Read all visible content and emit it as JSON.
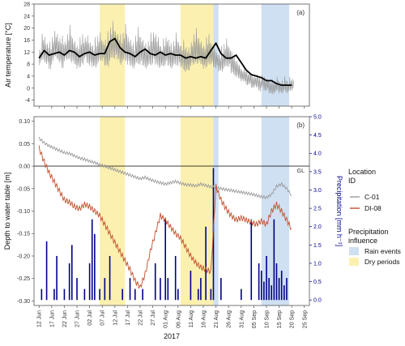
{
  "chart_data": [
    {
      "type": "line",
      "panel_label": "(a)",
      "ylabel": "Air temperature [°C]",
      "ylim": [
        -6,
        28
      ],
      "yticks": [
        -4,
        0,
        4,
        8,
        12,
        16,
        20,
        24,
        28
      ],
      "grid": false,
      "x_note": "days after 12 Jun 2017 (dates share axis with panel b)",
      "series": [
        {
          "role": "hourly temperature (grey)",
          "color": "#999999",
          "x": [
            0,
            1,
            2,
            3,
            4,
            5,
            6,
            7,
            8,
            9,
            10,
            11,
            12,
            13,
            14,
            15,
            16,
            17,
            18,
            19,
            20,
            21,
            22,
            23,
            24,
            25,
            26,
            27,
            28,
            29,
            30,
            31,
            32,
            33,
            34,
            35,
            36,
            37,
            38,
            39,
            40,
            41,
            42,
            43,
            44,
            45,
            46,
            47,
            48,
            49,
            50,
            51,
            52,
            53,
            54,
            55,
            56,
            57,
            58,
            59,
            60,
            61,
            62,
            63,
            64,
            65,
            66,
            67,
            68,
            69,
            70,
            71,
            72,
            73,
            74,
            75,
            76,
            77,
            78,
            79,
            80,
            81,
            82,
            83,
            84,
            85,
            86,
            87,
            88,
            89,
            90,
            91,
            92,
            93,
            94,
            95,
            96,
            97,
            98,
            99,
            100
          ],
          "y_mean": [
            10,
            13,
            12,
            11,
            10,
            12,
            14,
            13,
            12,
            11,
            12,
            13,
            14,
            12,
            11,
            10,
            11,
            12,
            13,
            12,
            11,
            10,
            11,
            12,
            13,
            12,
            11,
            12,
            14,
            15,
            14,
            13,
            12,
            13,
            14,
            12,
            11,
            10,
            12,
            13,
            12,
            11,
            10,
            11,
            12,
            13,
            12,
            11,
            10,
            11,
            12,
            11,
            10,
            11,
            12,
            11,
            10,
            10,
            9,
            9,
            11,
            12,
            13,
            12,
            11,
            10,
            11,
            12,
            11,
            10,
            9,
            8,
            9,
            10,
            11,
            10,
            8,
            7,
            6,
            5,
            4,
            4,
            3,
            3,
            2,
            2,
            2,
            1,
            2,
            1,
            1,
            0,
            0,
            0,
            1,
            0,
            0,
            1,
            0,
            1,
            1
          ],
          "amplitude": [
            4,
            6,
            5,
            5,
            6,
            7,
            6,
            5,
            6,
            7,
            5,
            6,
            7,
            6,
            5,
            6,
            7,
            6,
            5,
            6,
            6,
            5,
            6,
            7,
            6,
            5,
            6,
            7,
            8,
            8,
            7,
            6,
            6,
            7,
            8,
            7,
            6,
            5,
            7,
            8,
            7,
            6,
            5,
            6,
            7,
            8,
            7,
            6,
            5,
            6,
            7,
            6,
            5,
            6,
            7,
            6,
            5,
            6,
            6,
            5,
            6,
            7,
            7,
            6,
            5,
            6,
            7,
            6,
            5,
            5,
            4,
            4,
            5,
            6,
            6,
            5,
            5,
            4,
            4,
            3,
            3,
            3,
            3,
            3,
            3,
            3,
            3,
            3,
            3,
            3,
            3,
            3,
            3,
            3,
            3,
            3,
            3,
            3,
            3,
            3,
            3
          ]
        },
        {
          "role": "daily smoothed temperature (black)",
          "color": "#000000",
          "x": [
            0,
            2,
            4,
            6,
            8,
            10,
            12,
            14,
            16,
            18,
            20,
            22,
            24,
            26,
            28,
            30,
            32,
            34,
            36,
            38,
            40,
            42,
            44,
            46,
            48,
            50,
            52,
            54,
            56,
            58,
            60,
            62,
            64,
            66,
            68,
            70,
            72,
            74,
            76,
            78,
            80,
            82,
            84,
            86,
            88,
            90,
            92,
            94,
            96,
            98,
            100
          ],
          "y": [
            10,
            12.5,
            11,
            11.5,
            12,
            11,
            12.5,
            12,
            10.5,
            11.5,
            12,
            11,
            11.5,
            11.5,
            15.5,
            16.5,
            13.5,
            12,
            11.5,
            10.5,
            12,
            13,
            11.5,
            11,
            12,
            11,
            11.5,
            11,
            11,
            10,
            10.5,
            10,
            10.5,
            10,
            12.5,
            15,
            11.5,
            10,
            10,
            11,
            8.5,
            6,
            4.5,
            4,
            3.5,
            2.5,
            2.5,
            1.5,
            1,
            1,
            1
          ]
        }
      ],
      "shaded_periods": [
        {
          "type": "dry",
          "start": 24,
          "end": 34
        },
        {
          "type": "dry",
          "start": 56,
          "end": 69
        },
        {
          "type": "rain",
          "start": 69,
          "end": 71
        },
        {
          "type": "rain",
          "start": 88,
          "end": 99
        }
      ]
    },
    {
      "type": "line+bar",
      "panel_label": "(b)",
      "ylabel": "Depth to water table [m]",
      "ylabel_right": "Precipitation [mm h⁻¹]",
      "xlabel": "2017",
      "ylim": [
        -0.31,
        0.11
      ],
      "yticks": [
        0.1,
        0.05,
        0.0,
        -0.05,
        -0.1,
        -0.15,
        -0.2,
        -0.25,
        -0.3
      ],
      "ytick_labels": [
        "0.10",
        "0.05",
        "0.00",
        "-0.05",
        "-0.10",
        "-0.15",
        "-0.20",
        "-0.25",
        "-0.30"
      ],
      "y2lim": [
        -0.15,
        5.0
      ],
      "y2ticks": [
        0.0,
        0.5,
        1.0,
        1.5,
        2.0,
        2.5,
        3.0,
        3.5,
        4.0,
        4.5,
        5.0
      ],
      "y2tick_labels": [
        "0.0",
        "0.5",
        "1.0",
        "1.5",
        "2.0",
        "2.5",
        "3.0",
        "3.5",
        "4.0",
        "4.5",
        "5.0"
      ],
      "x_ticks_days": [
        0,
        5,
        10,
        15,
        20,
        25,
        30,
        35,
        40,
        45,
        50,
        55,
        60,
        65,
        70,
        75,
        80,
        85,
        90,
        95,
        100,
        105
      ],
      "x_tick_labels": [
        "12 Jun",
        "17 Jun",
        "22 Jun",
        "27 Jun",
        "02 Jul",
        "07 Jul",
        "12 Jul",
        "17 Jul",
        "22 Jul",
        "27 Jul",
        "01 Aug",
        "06 Aug",
        "11 Aug",
        "16 Aug",
        "21 Aug",
        "26 Aug",
        "31 Aug",
        "05 Sep",
        "10 Sep",
        "15 Sep",
        "20 Sep",
        "25 Sep"
      ],
      "x_range_days": [
        -2,
        107
      ],
      "reference_line": {
        "y": 0.0,
        "label": "GL"
      },
      "series": [
        {
          "name": "C-01",
          "color": "#999999",
          "x": [
            0,
            2,
            4,
            6,
            8,
            10,
            12,
            14,
            16,
            18,
            20,
            22,
            24,
            26,
            28,
            30,
            32,
            34,
            36,
            38,
            40,
            42,
            44,
            46,
            48,
            50,
            52,
            54,
            56,
            58,
            60,
            62,
            64,
            66,
            68,
            70,
            72,
            74,
            76,
            78,
            80,
            82,
            84,
            86,
            88,
            90,
            92,
            94,
            96,
            98,
            100
          ],
          "y": [
            0.062,
            0.052,
            0.045,
            0.04,
            0.035,
            0.03,
            0.028,
            0.023,
            0.018,
            0.015,
            0.011,
            0.008,
            0.003,
            0.0,
            -0.004,
            -0.008,
            -0.012,
            -0.016,
            -0.02,
            -0.024,
            -0.028,
            -0.025,
            -0.03,
            -0.034,
            -0.037,
            -0.04,
            -0.037,
            -0.034,
            -0.038,
            -0.041,
            -0.042,
            -0.044,
            -0.04,
            -0.043,
            -0.046,
            -0.048,
            -0.05,
            -0.052,
            -0.054,
            -0.056,
            -0.058,
            -0.06,
            -0.062,
            -0.065,
            -0.068,
            -0.07,
            -0.063,
            -0.045,
            -0.04,
            -0.05,
            -0.065
          ]
        },
        {
          "name": "DI-08",
          "color": "#c0502b",
          "x": [
            0,
            2,
            4,
            6,
            8,
            10,
            12,
            14,
            16,
            18,
            20,
            22,
            24,
            26,
            28,
            30,
            32,
            34,
            36,
            38,
            40,
            42,
            44,
            46,
            48,
            50,
            52,
            54,
            56,
            58,
            60,
            62,
            64,
            66,
            68,
            70,
            72,
            74,
            76,
            78,
            80,
            82,
            84,
            86,
            88,
            90,
            92,
            94,
            96,
            98,
            100
          ],
          "y": [
            0.04,
            0.01,
            -0.015,
            -0.035,
            -0.055,
            -0.075,
            -0.08,
            -0.09,
            -0.095,
            -0.085,
            -0.09,
            -0.1,
            -0.11,
            -0.13,
            -0.15,
            -0.17,
            -0.19,
            -0.21,
            -0.23,
            -0.255,
            -0.27,
            -0.24,
            -0.19,
            -0.15,
            -0.11,
            -0.12,
            -0.135,
            -0.15,
            -0.16,
            -0.18,
            -0.2,
            -0.215,
            -0.225,
            -0.23,
            -0.235,
            -0.045,
            -0.075,
            -0.095,
            -0.11,
            -0.12,
            -0.115,
            -0.12,
            -0.125,
            -0.13,
            -0.122,
            -0.13,
            -0.1,
            -0.085,
            -0.1,
            -0.12,
            -0.14
          ]
        }
      ],
      "precipitation": {
        "color": "#00008b",
        "days": [
          1,
          3,
          6,
          7,
          10,
          12,
          13,
          15,
          18,
          20,
          21,
          22,
          24,
          26,
          28,
          33,
          36,
          38,
          41,
          46,
          48,
          50,
          51,
          54,
          55,
          60,
          63,
          64,
          66,
          68,
          69,
          72,
          80,
          84,
          87,
          88,
          89,
          90,
          91,
          92,
          93,
          94,
          95,
          96,
          97,
          98
        ],
        "mm_per_h": [
          0.3,
          1.6,
          0.3,
          1.2,
          0.3,
          1.0,
          1.5,
          0.6,
          0.3,
          1.0,
          2.2,
          1.8,
          0.3,
          0.6,
          1.2,
          0.3,
          0.6,
          0.3,
          0.3,
          1.0,
          0.6,
          2.2,
          0.6,
          1.2,
          0.3,
          0.8,
          0.3,
          0.6,
          2.0,
          0.3,
          3.6,
          0.6,
          0.3,
          2.2,
          1.0,
          0.8,
          0.5,
          1.2,
          0.6,
          0.4,
          2.2,
          1.0,
          0.6,
          0.8,
          0.4,
          0.6
        ]
      },
      "shaded_periods": [
        {
          "type": "dry",
          "start": 24,
          "end": 34
        },
        {
          "type": "dry",
          "start": 56,
          "end": 69
        },
        {
          "type": "rain",
          "start": 69,
          "end": 71
        },
        {
          "type": "rain",
          "start": 88,
          "end": 99
        }
      ]
    }
  ],
  "legend": {
    "location_title": "Location\nID",
    "location_items": [
      {
        "label": "C-01",
        "color": "#999999"
      },
      {
        "label": "DI-08",
        "color": "#c0502b"
      }
    ],
    "precip_title": "Precipitation\ninfluence",
    "precip_items": [
      {
        "label": "Rain events",
        "color": "#cfe0f2"
      },
      {
        "label": "Dry periods",
        "color": "#fbf0b0"
      }
    ]
  },
  "colors": {
    "dry": "#fbf0b0",
    "rain": "#cfe0f2",
    "precip_axis": "#00008b"
  }
}
